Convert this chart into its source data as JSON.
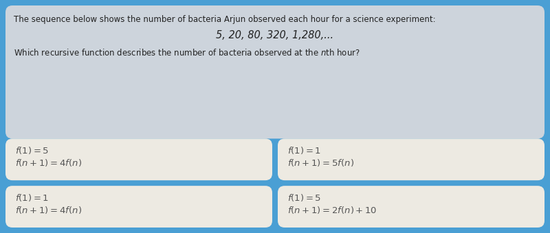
{
  "bg_color": "#4a9fd4",
  "top_box_color": "#cdd4dc",
  "answer_box_color": "#edeae2",
  "title_text": "The sequence below shows the number of bacteria Arjun observed each hour for a science experiment:",
  "sequence_text": "5, 20, 80, 320, 1,280,...",
  "question_text": "Which recursive function describes the number of bacteria observed at the $n$th hour?",
  "answers": [
    [
      "$f(1) = 5$",
      "$f(n+1) = 4f(n)$"
    ],
    [
      "$f(1) = 1$",
      "$f(n+1) = 5f(n)$"
    ],
    [
      "$f(1) = 1$",
      "$f(n+1) = 4f(n)$"
    ],
    [
      "$f(1) = 5$",
      "$f(n+1) = 2f(n) + 10$"
    ]
  ],
  "text_color": "#555555",
  "title_color": "#222222",
  "font_size_main": 8.5,
  "font_size_seq": 10.5,
  "font_size_ans": 9.5,
  "figw": 8.0,
  "figh": 3.4,
  "dpi": 100
}
